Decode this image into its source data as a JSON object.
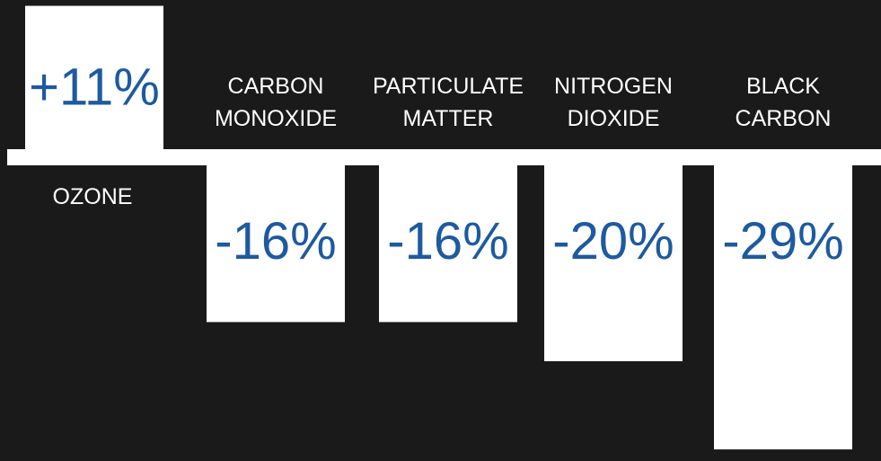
{
  "colors": {
    "background": "#1a1a1a",
    "bar": "#ffffff",
    "baseline": "#ffffff",
    "value_text": "#1d5aa0",
    "category_text": "#ffffff"
  },
  "chart_data": {
    "type": "bar",
    "title": "",
    "xlabel": "",
    "ylabel": "",
    "ylim": [
      -30,
      12
    ],
    "grid": false,
    "legend": "none",
    "categories": [
      [
        "OZONE"
      ],
      [
        "CARBON",
        "MONOXIDE"
      ],
      [
        "PARTICULATE",
        "MATTER"
      ],
      [
        "NITROGEN",
        "DIOXIDE"
      ],
      [
        "BLACK",
        "CARBON"
      ]
    ],
    "values": [
      11,
      -16,
      -16,
      -20,
      -29
    ],
    "value_labels": [
      "+11%",
      "-16%",
      "-16%",
      "-20%",
      "-29%"
    ]
  }
}
